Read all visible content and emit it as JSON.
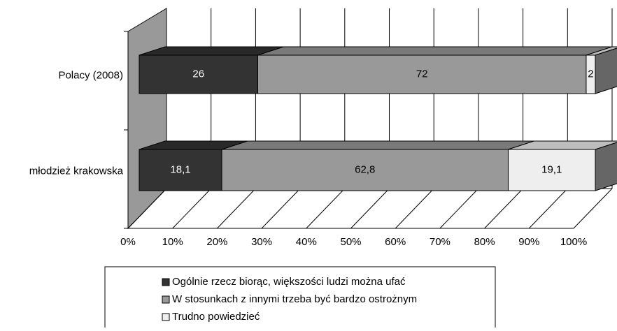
{
  "chart_data": {
    "type": "bar3d_stacked_horizontal",
    "categories": [
      "Polacy (2008)",
      "młodzież krakowska"
    ],
    "series": [
      {
        "name": "Ogólnie rzecz biorąc, większości ludzi można ufać",
        "color": "#333333",
        "values": [
          26,
          18.1
        ],
        "value_labels": [
          "26",
          "18,1"
        ]
      },
      {
        "name": "W stosunkach z innymi trzeba być bardzo ostrożnym",
        "color": "#999999",
        "values": [
          72,
          62.8
        ],
        "value_labels": [
          "72",
          "62,8"
        ]
      },
      {
        "name": "Trudno powiedzieć",
        "color": "#eeeeee",
        "values": [
          2,
          19.1
        ],
        "value_labels": [
          "2",
          "19,1"
        ]
      }
    ],
    "xlim": [
      0,
      100
    ],
    "xticks": [
      {
        "value": 0,
        "label": "0%"
      },
      {
        "value": 10,
        "label": "10%"
      },
      {
        "value": 20,
        "label": "20%"
      },
      {
        "value": 30,
        "label": "30%"
      },
      {
        "value": 40,
        "label": "40%"
      },
      {
        "value": 50,
        "label": "50%"
      },
      {
        "value": 60,
        "label": "60%"
      },
      {
        "value": 70,
        "label": "70%"
      },
      {
        "value": 80,
        "label": "80%"
      },
      {
        "value": 90,
        "label": "90%"
      },
      {
        "value": 100,
        "label": "100%"
      }
    ],
    "grid": true
  }
}
